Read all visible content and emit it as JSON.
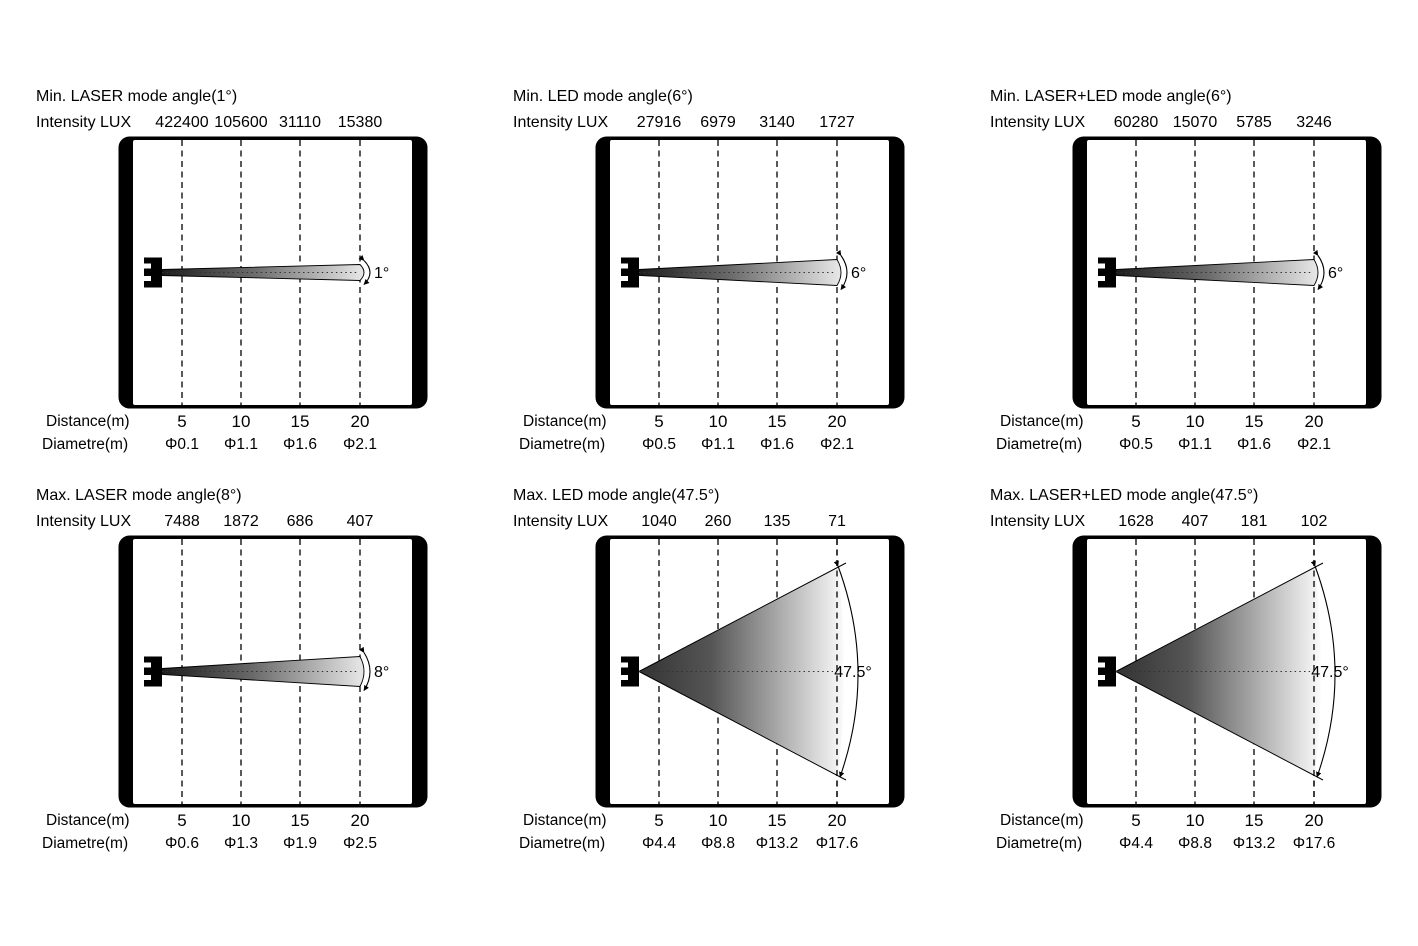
{
  "page": {
    "background": "#ffffff",
    "text_color": "#000000",
    "beam_dark_color": "#333333",
    "beam_light_color": "#f2f2f2"
  },
  "panels": [
    {
      "title": "Min. LASER mode angle(1°)",
      "intensity_label": "Intensity LUX",
      "intensity_values": [
        "422400",
        "105600",
        "31110",
        "15380"
      ],
      "angle_label": "1°",
      "angle_value": 1,
      "distance_label": "Distance(m)",
      "distances": [
        "5",
        "10",
        "15",
        "20"
      ],
      "diameter_label": "Diametre(m)",
      "diameters": [
        "Φ0.1",
        "Φ1.1",
        "Φ1.6",
        "Φ2.1"
      ]
    },
    {
      "title": "Min. LED mode angle(6°)",
      "intensity_label": "Intensity LUX",
      "intensity_values": [
        "27916",
        "6979",
        "3140",
        "1727"
      ],
      "angle_label": "6°",
      "angle_value": 6,
      "distance_label": "Distance(m)",
      "distances": [
        "5",
        "10",
        "15",
        "20"
      ],
      "diameter_label": "Diametre(m)",
      "diameters": [
        "Φ0.5",
        "Φ1.1",
        "Φ1.6",
        "Φ2.1"
      ]
    },
    {
      "title": "Min. LASER+LED mode angle(6°)",
      "intensity_label": "Intensity LUX",
      "intensity_values": [
        "60280",
        "15070",
        "5785",
        "3246"
      ],
      "angle_label": "6°",
      "angle_value": 6,
      "distance_label": "Distance(m)",
      "distances": [
        "5",
        "10",
        "15",
        "20"
      ],
      "diameter_label": "Diametre(m)",
      "diameters": [
        "Φ0.5",
        "Φ1.1",
        "Φ1.6",
        "Φ2.1"
      ]
    },
    {
      "title": "Max. LASER mode angle(8°)",
      "intensity_label": "Intensity LUX",
      "intensity_values": [
        "7488",
        "1872",
        "686",
        "407"
      ],
      "angle_label": "8°",
      "angle_value": 8,
      "distance_label": "Distance(m)",
      "distances": [
        "5",
        "10",
        "15",
        "20"
      ],
      "diameter_label": "Diametre(m)",
      "diameters": [
        "Φ0.6",
        "Φ1.3",
        "Φ1.9",
        "Φ2.5"
      ]
    },
    {
      "title": "Max. LED mode angle(47.5°)",
      "intensity_label": "Intensity LUX",
      "intensity_values": [
        "1040",
        "260",
        "135",
        "71"
      ],
      "angle_label": "47.5°",
      "angle_value": 47.5,
      "distance_label": "Distance(m)",
      "distances": [
        "5",
        "10",
        "15",
        "20"
      ],
      "diameter_label": "Diametre(m)",
      "diameters": [
        "Φ4.4",
        "Φ8.8",
        "Φ13.2",
        "Φ17.6"
      ]
    },
    {
      "title": "Max. LASER+LED mode angle(47.5°)",
      "intensity_label": "Intensity LUX",
      "intensity_values": [
        "1628",
        "407",
        "181",
        "102"
      ],
      "angle_label": "47.5°",
      "angle_value": 47.5,
      "distance_label": "Distance(m)",
      "distances": [
        "5",
        "10",
        "15",
        "20"
      ],
      "diameter_label": "Diametre(m)",
      "diameters": [
        "Φ4.4",
        "Φ8.8",
        "Φ13.2",
        "Φ17.6"
      ]
    }
  ]
}
